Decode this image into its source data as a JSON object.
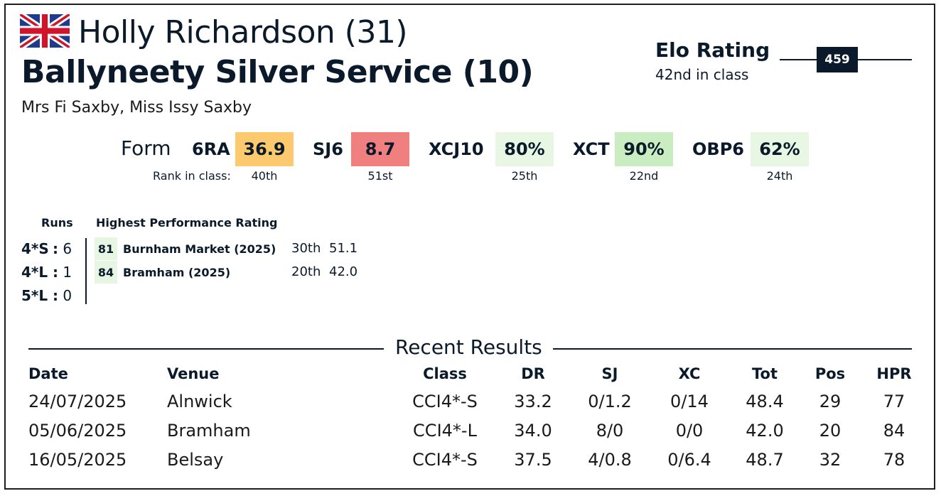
{
  "header": {
    "flag": "union-jack",
    "rider": "Holly Richardson (31)",
    "horse": "Ballyneety Silver Service (10)",
    "owners": "Mrs Fi Saxby, Miss Issy Saxby"
  },
  "elo": {
    "title": "Elo Rating",
    "rank": "42nd in class",
    "value": "459"
  },
  "form": {
    "label": "Form",
    "rank_label": "Rank in class:",
    "items": [
      {
        "key": "6RA",
        "value": "36.9",
        "rank": "40th",
        "color": "#fdc96f"
      },
      {
        "key": "SJ6",
        "value": "8.7",
        "rank": "51st",
        "color": "#f08080"
      },
      {
        "key": "XCJ10",
        "value": "80%",
        "rank": "25th",
        "color": "#e8f6e4"
      },
      {
        "key": "XCT",
        "value": "90%",
        "rank": "22nd",
        "color": "#c9edc1"
      },
      {
        "key": "OBP6",
        "value": "62%",
        "rank": "24th",
        "color": "#e8f6e4"
      }
    ]
  },
  "runs": {
    "header": "Runs",
    "hpr_header": "Highest Performance Rating",
    "rows": [
      {
        "level": "4*S",
        "sep": ":",
        "count": "6",
        "hpr": "81",
        "event": "Burnham Market (2025)",
        "place": "30th",
        "score": "51.1"
      },
      {
        "level": "4*L",
        "sep": ":",
        "count": "1",
        "hpr": "84",
        "event": "Bramham (2025)",
        "place": "20th",
        "score": "42.0"
      },
      {
        "level": "5*L",
        "sep": ":",
        "count": "0"
      }
    ]
  },
  "recent": {
    "title": "Recent Results",
    "columns": [
      "Date",
      "Venue",
      "Class",
      "DR",
      "SJ",
      "XC",
      "Tot",
      "Pos",
      "HPR"
    ],
    "rows": [
      [
        "24/07/2025",
        "Alnwick",
        "CCI4*-S",
        "33.2",
        "0/1.2",
        "0/14",
        "48.4",
        "29",
        "77"
      ],
      [
        "05/06/2025",
        "Bramham",
        "CCI4*-L",
        "34.0",
        "8/0",
        "0/0",
        "42.0",
        "20",
        "84"
      ],
      [
        "16/05/2025",
        "Belsay",
        "CCI4*-S",
        "37.5",
        "4/0.8",
        "0/6.4",
        "48.7",
        "32",
        "78"
      ]
    ]
  }
}
